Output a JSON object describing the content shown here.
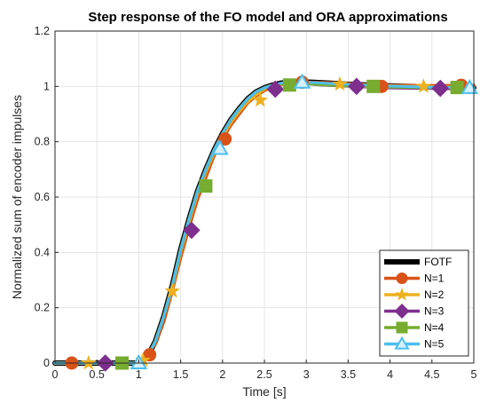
{
  "chart_data": {
    "type": "line",
    "title": "Step response of the FO model and ORA approximations",
    "xlabel": "Time [s]",
    "ylabel": "Normalized sum of encoder impulses",
    "xlim": [
      0,
      5
    ],
    "ylim": [
      0,
      1.2
    ],
    "x_ticks": [
      "0",
      "0.5",
      "1",
      "1.5",
      "2",
      "2.5",
      "3",
      "3.5",
      "4",
      "4.5",
      "5"
    ],
    "y_ticks": [
      "0",
      "0.2",
      "0.4",
      "0.6",
      "0.8",
      "1",
      "1.2"
    ],
    "grid": true,
    "legend_position": "bottom-right",
    "series": [
      {
        "name": "FOTF",
        "color": "#000000",
        "marker": "none",
        "x": [
          0,
          0.5,
          1.0,
          1.1,
          1.2,
          1.3,
          1.4,
          1.5,
          1.6,
          1.7,
          1.8,
          1.9,
          2.0,
          2.1,
          2.2,
          2.3,
          2.4,
          2.5,
          2.6,
          2.7,
          2.8,
          2.9,
          3.0,
          3.2,
          3.5,
          4.0,
          4.5,
          5.0
        ],
        "y": [
          0,
          0,
          0,
          0.02,
          0.08,
          0.17,
          0.28,
          0.41,
          0.52,
          0.62,
          0.7,
          0.77,
          0.83,
          0.88,
          0.92,
          0.955,
          0.98,
          0.995,
          1.005,
          1.012,
          1.015,
          1.016,
          1.016,
          1.013,
          1.008,
          1.002,
          0.998,
          0.995
        ]
      },
      {
        "name": "N=1",
        "color": "#d95319",
        "marker": "circle",
        "x": [
          0,
          0.2,
          0.5,
          1.0,
          1.1,
          1.2,
          1.3,
          1.4,
          1.5,
          1.6,
          1.7,
          1.8,
          1.9,
          2.0,
          2.1,
          2.2,
          2.3,
          2.4,
          2.5,
          2.6,
          2.7,
          2.8,
          2.95,
          3.2,
          3.5,
          3.9,
          4.5,
          5.0
        ],
        "y": [
          0,
          0,
          0,
          0,
          0.03,
          0.07,
          0.15,
          0.26,
          0.38,
          0.49,
          0.59,
          0.67,
          0.75,
          0.81,
          0.86,
          0.9,
          0.94,
          0.965,
          0.985,
          0.998,
          1.006,
          1.012,
          1.015,
          1.014,
          1.01,
          1.004,
          1.003,
          1.004
        ],
        "marker_x": [
          0.2,
          1.13,
          2.03,
          2.95,
          3.9,
          4.85
        ],
        "marker_y": [
          0,
          0.03,
          0.81,
          1.015,
          1.0,
          1.004
        ]
      },
      {
        "name": "N=2",
        "color": "#edb120",
        "marker": "star",
        "x": [
          0,
          0.5,
          1.0,
          1.1,
          1.2,
          1.3,
          1.4,
          1.5,
          1.6,
          1.7,
          1.8,
          1.9,
          2.0,
          2.1,
          2.2,
          2.3,
          2.4,
          2.5,
          2.6,
          2.7,
          2.8,
          2.9,
          3.0,
          3.2,
          3.5,
          4.0,
          4.5,
          5.0
        ],
        "y": [
          0,
          0,
          0,
          0.02,
          0.08,
          0.17,
          0.27,
          0.4,
          0.51,
          0.61,
          0.69,
          0.76,
          0.82,
          0.87,
          0.91,
          0.945,
          0.97,
          0.99,
          1.0,
          1.008,
          1.012,
          1.013,
          1.012,
          1.01,
          1.006,
          1.002,
          0.998,
          0.996
        ],
        "marker_x": [
          0.4,
          1.05,
          1.4,
          2.45,
          3.4,
          4.4
        ],
        "marker_y": [
          0,
          0.01,
          0.26,
          0.95,
          1.008,
          1.0
        ]
      },
      {
        "name": "N=3",
        "color": "#7e2f8e",
        "marker": "diamond",
        "x": [
          0,
          0.5,
          1.0,
          1.1,
          1.2,
          1.3,
          1.4,
          1.5,
          1.6,
          1.7,
          1.8,
          1.9,
          2.0,
          2.1,
          2.2,
          2.3,
          2.4,
          2.5,
          2.6,
          2.7,
          2.8,
          2.9,
          3.0,
          3.2,
          3.6,
          4.0,
          4.5,
          5.0
        ],
        "y": [
          0,
          0,
          0,
          0.02,
          0.08,
          0.17,
          0.28,
          0.41,
          0.52,
          0.62,
          0.7,
          0.77,
          0.83,
          0.88,
          0.92,
          0.955,
          0.98,
          0.995,
          1.005,
          1.01,
          1.012,
          1.012,
          1.01,
          1.005,
          1.0,
          0.995,
          0.993,
          0.993
        ],
        "marker_x": [
          0.6,
          1.63,
          2.63,
          3.6,
          4.6
        ],
        "marker_y": [
          0,
          0.48,
          0.99,
          1.0,
          0.993
        ]
      },
      {
        "name": "N=4",
        "color": "#77ac30",
        "marker": "square",
        "x": [
          0,
          0.5,
          1.0,
          1.1,
          1.2,
          1.3,
          1.4,
          1.5,
          1.6,
          1.7,
          1.8,
          1.9,
          2.0,
          2.1,
          2.2,
          2.3,
          2.4,
          2.5,
          2.6,
          2.7,
          2.8,
          2.9,
          3.0,
          3.2,
          3.5,
          4.0,
          4.5,
          5.0
        ],
        "y": [
          0,
          0,
          0,
          0.02,
          0.08,
          0.17,
          0.28,
          0.41,
          0.52,
          0.62,
          0.7,
          0.77,
          0.83,
          0.88,
          0.92,
          0.955,
          0.98,
          0.995,
          1.005,
          1.01,
          1.012,
          1.012,
          1.01,
          1.006,
          1.002,
          0.998,
          0.996,
          0.996
        ],
        "marker_x": [
          0.8,
          1.8,
          2.8,
          3.8,
          4.8
        ],
        "marker_y": [
          0,
          0.64,
          1.005,
          1.0,
          0.996
        ]
      },
      {
        "name": "N=5",
        "color": "#4dbeee",
        "marker": "triangle",
        "x": [
          0,
          0.5,
          1.0,
          1.1,
          1.2,
          1.3,
          1.4,
          1.5,
          1.6,
          1.7,
          1.8,
          1.9,
          2.0,
          2.1,
          2.2,
          2.3,
          2.4,
          2.5,
          2.6,
          2.7,
          2.8,
          2.9,
          3.0,
          3.2,
          3.5,
          4.0,
          4.5,
          5.0
        ],
        "y": [
          0,
          0,
          0,
          0.02,
          0.08,
          0.17,
          0.28,
          0.41,
          0.52,
          0.62,
          0.7,
          0.77,
          0.83,
          0.88,
          0.92,
          0.955,
          0.98,
          0.995,
          1.005,
          1.012,
          1.015,
          1.016,
          1.015,
          1.012,
          1.007,
          1.001,
          0.997,
          0.995
        ],
        "marker_x": [
          1.0,
          1.97,
          2.95,
          4.95
        ],
        "marker_y": [
          0,
          0.775,
          1.015,
          0.995
        ]
      }
    ]
  }
}
